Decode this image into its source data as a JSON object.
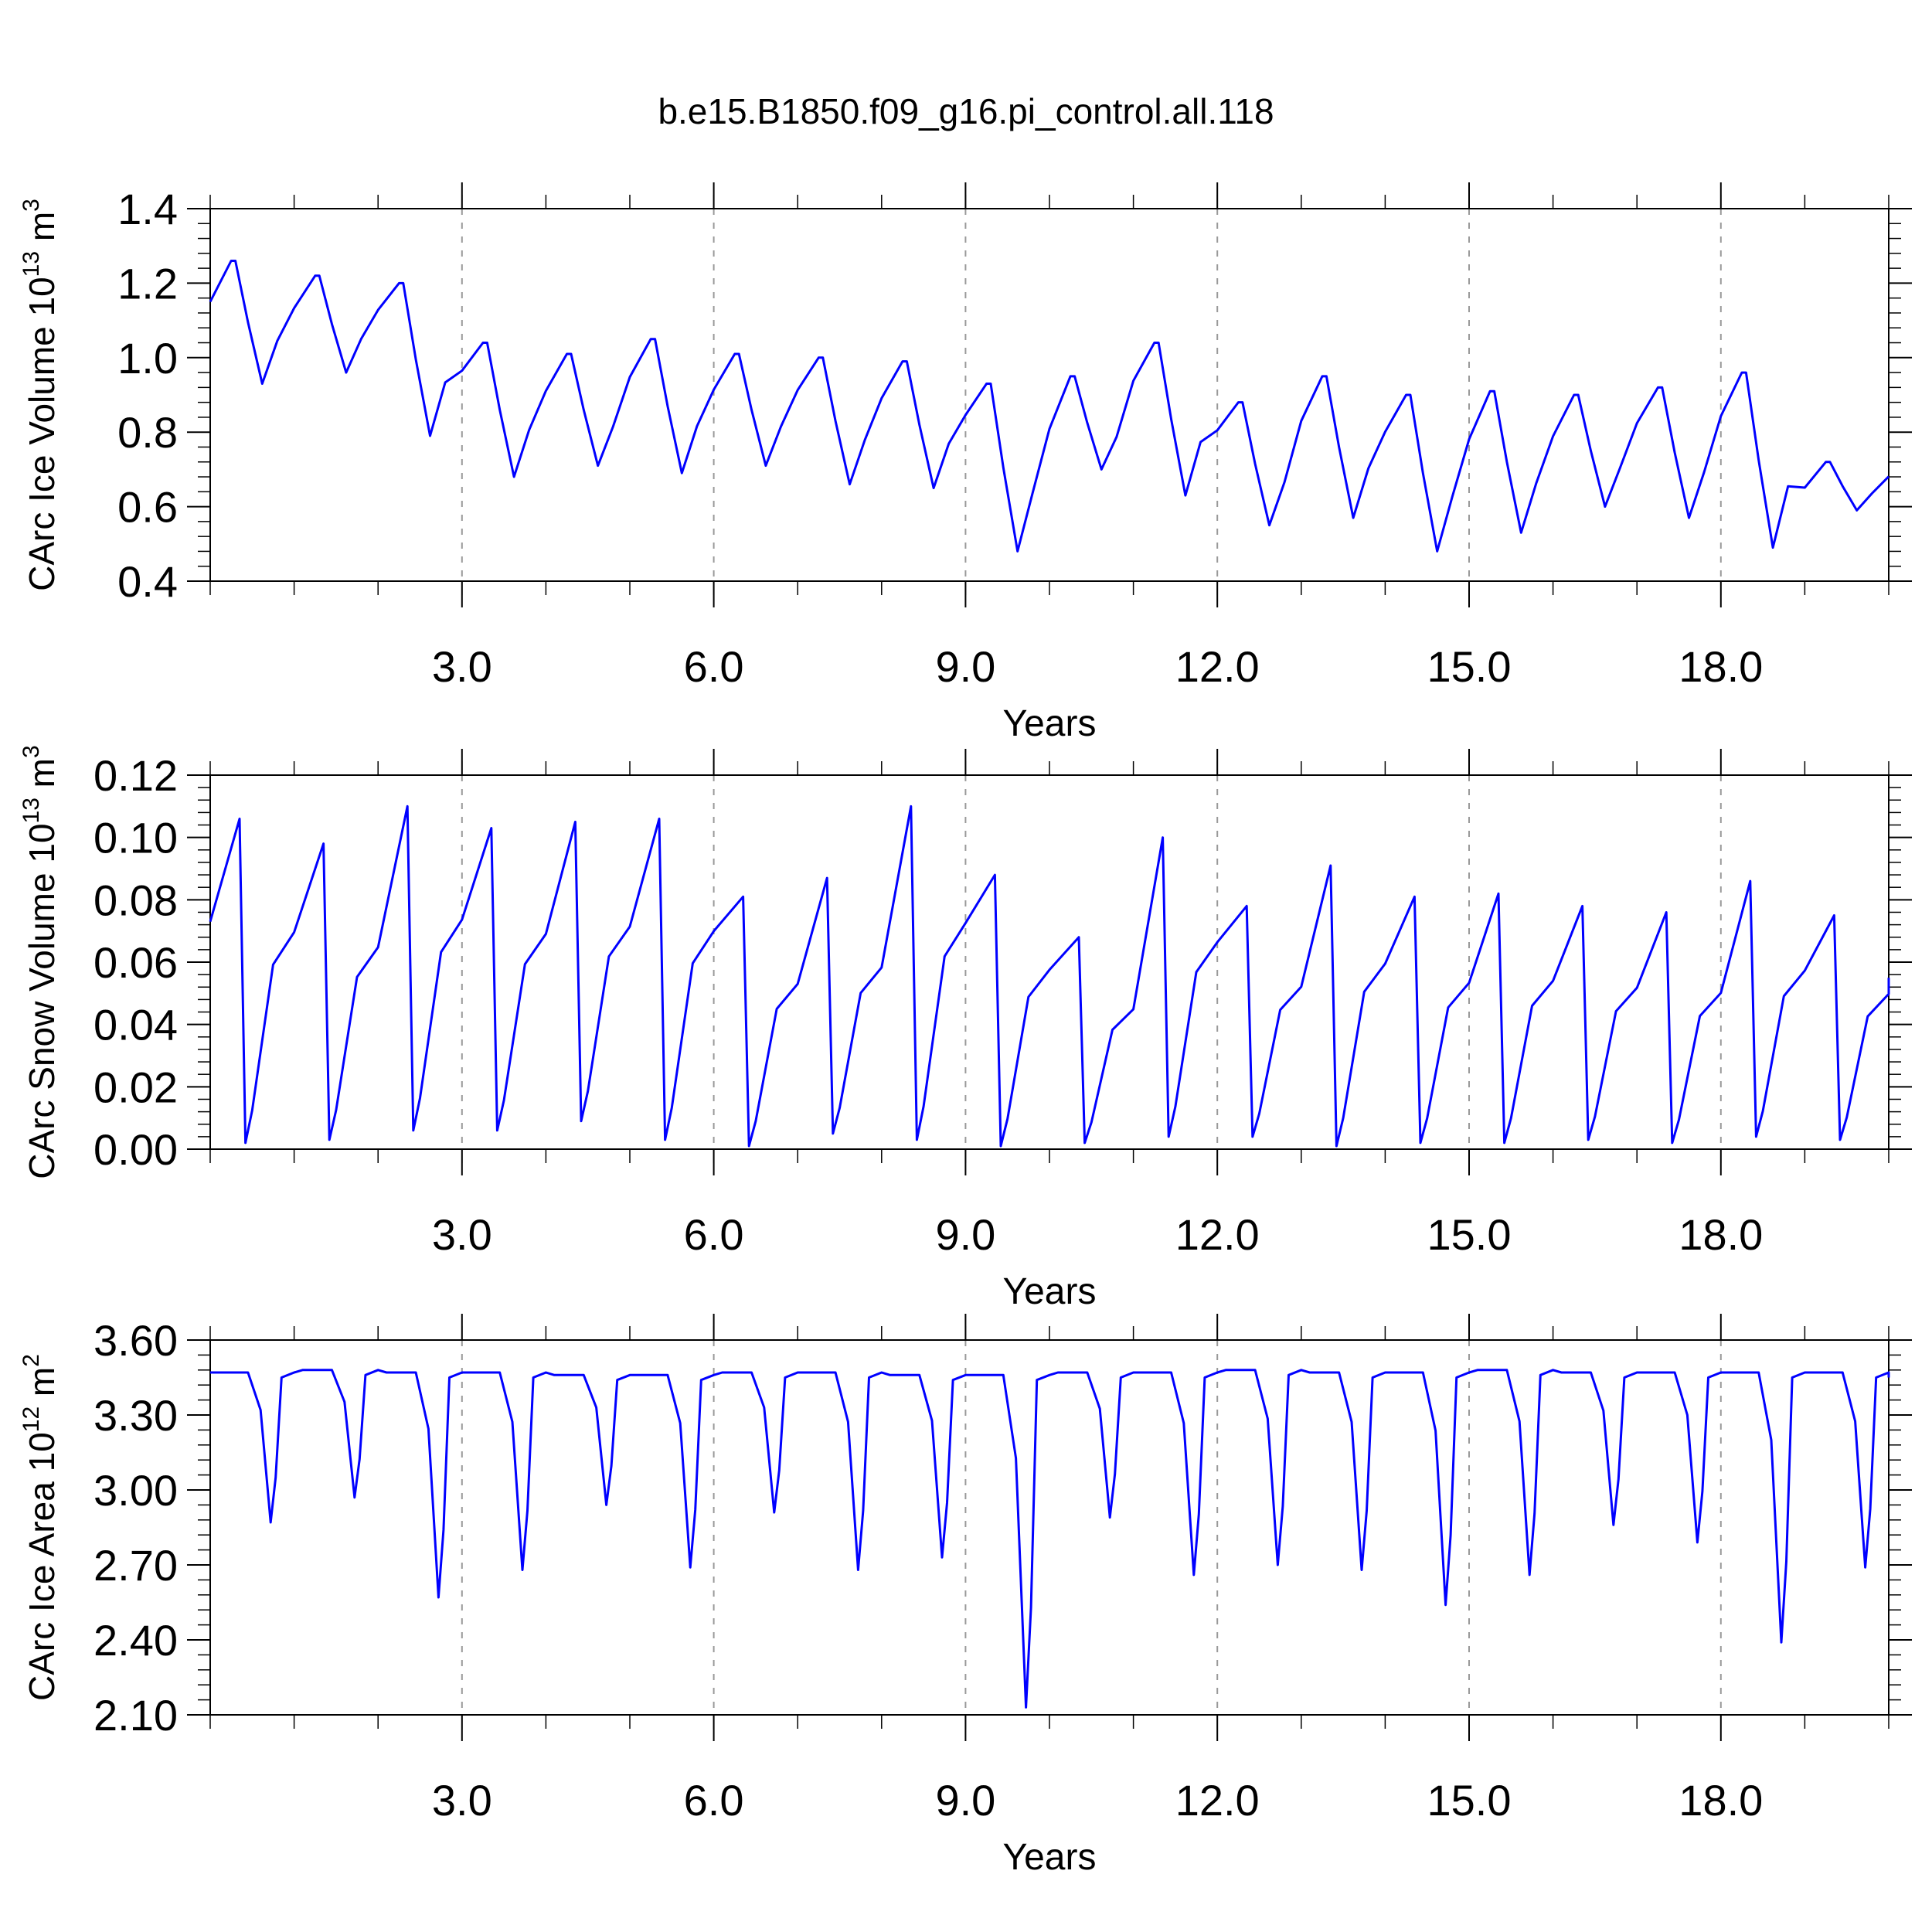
{
  "title": "b.e15.B1850.f09_g16.pi_control.all.118",
  "chart_data": [
    {
      "type": "line",
      "ylabel": {
        "base": "CArc Ice Volume 10",
        "exp": "13",
        "unit": " m",
        "unit_exp": "3"
      },
      "xlabel": "Years",
      "xlim": [
        0.0,
        20.0
      ],
      "ylim": [
        0.4,
        1.4
      ],
      "xticks": [
        "3.0",
        "6.0",
        "9.0",
        "12.0",
        "15.0",
        "18.0"
      ],
      "yticks": [
        "0.4",
        "0.6",
        "0.8",
        "1.0",
        "1.2",
        "1.4"
      ],
      "grid": "x-dashed",
      "color": "#0000ff",
      "cycle_max": [
        1.26,
        1.22,
        1.2,
        1.04,
        1.01,
        1.05,
        1.01,
        1.0,
        0.99,
        0.93,
        0.95,
        1.04,
        0.88,
        0.95,
        0.9,
        0.91,
        0.9,
        0.92,
        0.96,
        0.72
      ],
      "cycle_min": [
        0.93,
        0.96,
        0.79,
        0.68,
        0.71,
        0.69,
        0.71,
        0.66,
        0.65,
        0.48,
        0.7,
        0.63,
        0.55,
        0.57,
        0.48,
        0.53,
        0.6,
        0.57,
        0.49,
        0.59
      ],
      "start": 1.15
    },
    {
      "type": "line",
      "ylabel": {
        "base": "CArc Snow Volume 10",
        "exp": "13",
        "unit": " m",
        "unit_exp": "3"
      },
      "xlabel": "Years",
      "xlim": [
        0.0,
        20.0
      ],
      "ylim": [
        0.0,
        0.12
      ],
      "xticks": [
        "3.0",
        "6.0",
        "9.0",
        "12.0",
        "15.0",
        "18.0"
      ],
      "yticks": [
        "0.00",
        "0.02",
        "0.04",
        "0.06",
        "0.08",
        "0.10",
        "0.12"
      ],
      "grid": "x-dashed",
      "color": "#0000ff",
      "cycle_max": [
        0.106,
        0.098,
        0.11,
        0.103,
        0.105,
        0.106,
        0.081,
        0.087,
        0.11,
        0.088,
        0.068,
        0.1,
        0.078,
        0.091,
        0.081,
        0.082,
        0.078,
        0.076,
        0.086,
        0.075
      ],
      "cycle_min": [
        0.002,
        0.003,
        0.006,
        0.006,
        0.009,
        0.003,
        0.001,
        0.005,
        0.003,
        0.001,
        0.002,
        0.004,
        0.004,
        0.001,
        0.002,
        0.002,
        0.003,
        0.002,
        0.004,
        0.003
      ],
      "start": 0.073,
      "end": 0.055
    },
    {
      "type": "line",
      "ylabel": {
        "base": "CArc Ice Area 10",
        "exp": "12",
        "unit": " m",
        "unit_exp": "2"
      },
      "xlabel": "Years",
      "xlim": [
        0.0,
        20.0
      ],
      "ylim": [
        2.1,
        3.6
      ],
      "xticks": [
        "3.0",
        "6.0",
        "9.0",
        "12.0",
        "15.0",
        "18.0"
      ],
      "yticks": [
        "2.10",
        "2.40",
        "2.70",
        "3.00",
        "3.30",
        "3.60"
      ],
      "grid": "x-dashed",
      "color": "#0000ff",
      "cycle_max": [
        3.47,
        3.48,
        3.47,
        3.47,
        3.46,
        3.46,
        3.47,
        3.47,
        3.46,
        3.46,
        3.47,
        3.47,
        3.48,
        3.47,
        3.47,
        3.48,
        3.47,
        3.47,
        3.47,
        3.47
      ],
      "cycle_min": [
        2.87,
        2.97,
        2.57,
        2.68,
        2.94,
        2.69,
        2.91,
        2.68,
        2.73,
        2.13,
        2.89,
        2.66,
        2.7,
        2.68,
        2.54,
        2.66,
        2.86,
        2.79,
        2.39,
        2.69
      ],
      "start": 3.47,
      "end": 3.45
    }
  ]
}
